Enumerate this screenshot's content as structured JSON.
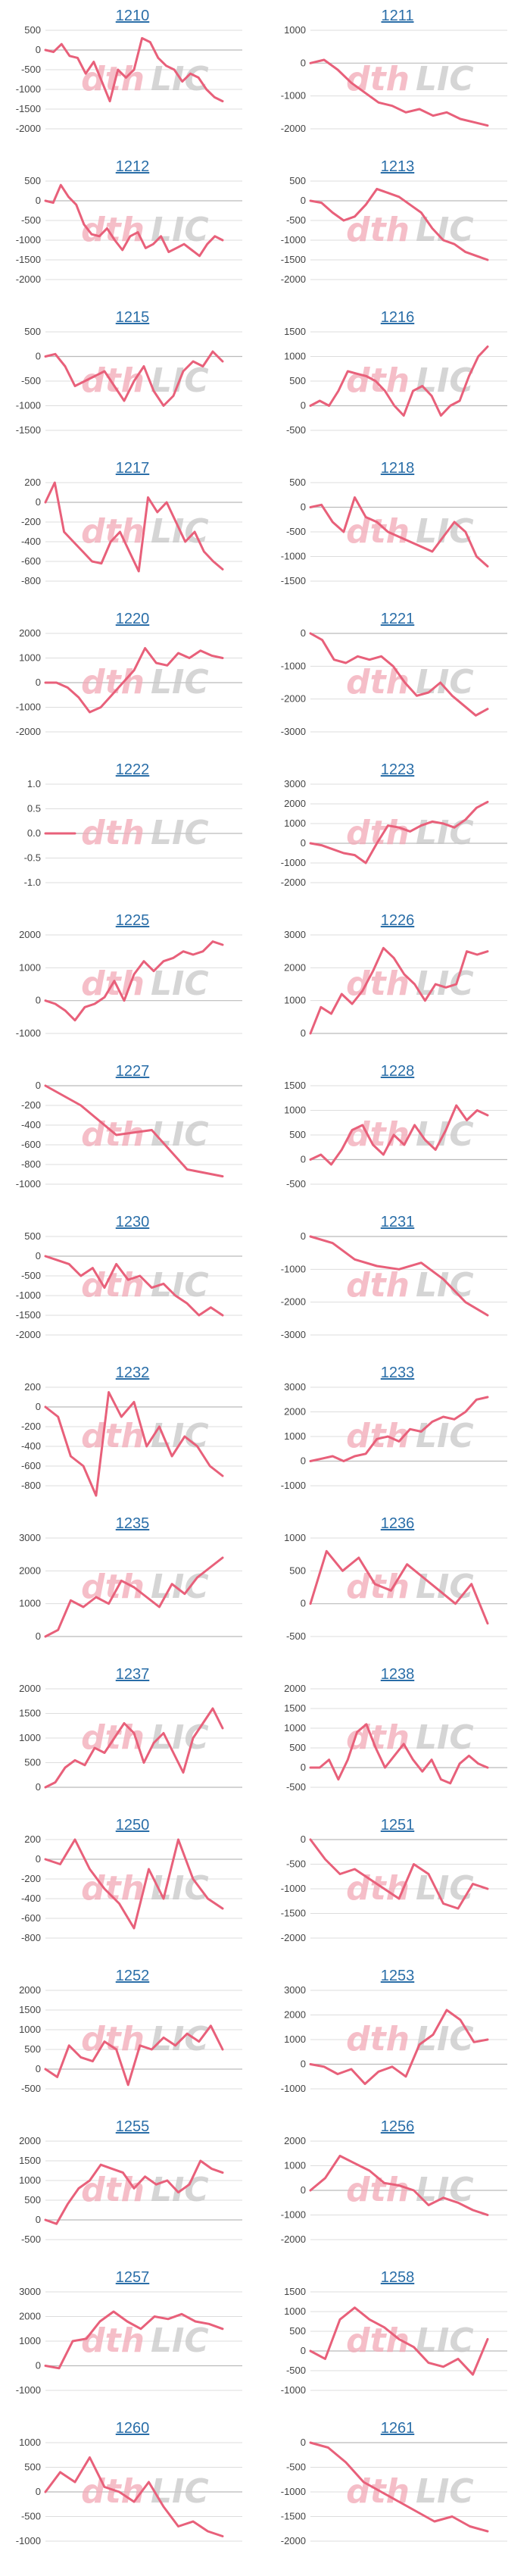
{
  "colors": {
    "line": "#e8607a",
    "grid": "#dddddd",
    "axis": "#bbbbbb",
    "title": "#2a6ea8",
    "watermark_left": "#f2a9b6",
    "watermark_right": "#c8c8c8"
  },
  "watermark": {
    "left_text": "dth",
    "right_text": "LIC",
    "description": "dth logo watermark"
  },
  "chart_data": [
    {
      "type": "line",
      "title": "1210",
      "yticks": [
        500,
        0,
        -500,
        -1000,
        -1500,
        -2000
      ],
      "values": [
        0,
        -50,
        150,
        -150,
        -200,
        -600,
        -300,
        -800,
        -1300,
        -500,
        -700,
        -500,
        300,
        200,
        -200,
        -400,
        -500,
        -800,
        -600,
        -700,
        -1000,
        -1200,
        -1300
      ]
    },
    {
      "type": "line",
      "title": "1211",
      "yticks": [
        1000,
        0,
        -1000,
        -2000
      ],
      "values": [
        0,
        100,
        -200,
        -600,
        -900,
        -1200,
        -1300,
        -1500,
        -1400,
        -1600,
        -1500,
        -1700,
        -1800,
        -1900
      ]
    },
    {
      "type": "line",
      "title": "1212",
      "yticks": [
        500,
        0,
        -500,
        -1000,
        -1500,
        -2000
      ],
      "values": [
        0,
        -50,
        400,
        100,
        -100,
        -600,
        -850,
        -900,
        -700,
        -1000,
        -1250,
        -900,
        -800,
        -1200,
        -1100,
        -900,
        -1300,
        -1200,
        -1100,
        -1250,
        -1400,
        -1100,
        -900,
        -1000
      ]
    },
    {
      "type": "line",
      "title": "1213",
      "yticks": [
        500,
        0,
        -500,
        -1000,
        -1500,
        -2000
      ],
      "values": [
        0,
        -50,
        -300,
        -500,
        -400,
        -100,
        300,
        200,
        100,
        -100,
        -300,
        -700,
        -1000,
        -1100,
        -1300,
        -1400,
        -1500
      ]
    },
    {
      "type": "line",
      "title": "1215",
      "yticks": [
        500,
        0,
        -500,
        -1000,
        -1500
      ],
      "values": [
        0,
        50,
        -200,
        -600,
        -500,
        -400,
        -300,
        -600,
        -900,
        -500,
        -200,
        -700,
        -1000,
        -800,
        -300,
        -100,
        -200,
        100,
        -100
      ]
    },
    {
      "type": "line",
      "title": "1216",
      "yticks": [
        1500,
        1000,
        500,
        0,
        -500
      ],
      "values": [
        0,
        100,
        0,
        300,
        700,
        650,
        600,
        500,
        300,
        0,
        -200,
        300,
        400,
        200,
        -200,
        0,
        100,
        600,
        1000,
        1200
      ]
    },
    {
      "type": "line",
      "title": "1217",
      "yticks": [
        200,
        0,
        -200,
        -400,
        -600,
        -800
      ],
      "values": [
        0,
        200,
        -300,
        -400,
        -500,
        -600,
        -620,
        -400,
        -300,
        -500,
        -700,
        50,
        -100,
        0,
        -200,
        -400,
        -300,
        -500,
        -600,
        -680
      ]
    },
    {
      "type": "line",
      "title": "1218",
      "yticks": [
        500,
        0,
        -500,
        -1000,
        -1500
      ],
      "values": [
        0,
        50,
        -300,
        -500,
        200,
        -200,
        -300,
        -500,
        -600,
        -700,
        -800,
        -900,
        -600,
        -300,
        -500,
        -1000,
        -1200
      ]
    },
    {
      "type": "line",
      "title": "1220",
      "yticks": [
        2000,
        1000,
        0,
        -1000,
        -2000
      ],
      "values": [
        0,
        0,
        -200,
        -600,
        -1200,
        -1000,
        -500,
        0,
        500,
        1400,
        800,
        700,
        1200,
        1000,
        1300,
        1100,
        1000
      ]
    },
    {
      "type": "line",
      "title": "1221",
      "yticks": [
        0,
        -1000,
        -2000,
        -3000
      ],
      "values": [
        0,
        -200,
        -800,
        -900,
        -700,
        -800,
        -700,
        -1000,
        -1500,
        -1900,
        -1800,
        -1500,
        -1900,
        -2200,
        -2500,
        -2300
      ]
    },
    {
      "type": "line",
      "title": "1222",
      "yticks": [
        1.0,
        0.5,
        0,
        -0.5,
        -1.0
      ],
      "values": [
        0,
        0,
        0,
        0
      ]
    },
    {
      "type": "line",
      "title": "1223",
      "yticks": [
        3000,
        2000,
        1000,
        0,
        -1000,
        -2000
      ],
      "values": [
        0,
        -100,
        -300,
        -500,
        -600,
        -1000,
        0,
        900,
        800,
        600,
        900,
        1100,
        1000,
        800,
        1200,
        1800,
        2100
      ]
    },
    {
      "type": "line",
      "title": "1225",
      "yticks": [
        2000,
        1000,
        0,
        -1000
      ],
      "values": [
        0,
        -100,
        -300,
        -600,
        -200,
        -100,
        100,
        600,
        0,
        800,
        1200,
        900,
        1200,
        1300,
        1500,
        1400,
        1500,
        1800,
        1700
      ]
    },
    {
      "type": "line",
      "title": "1226",
      "yticks": [
        3000,
        2000,
        1000,
        0
      ],
      "values": [
        0,
        800,
        600,
        1200,
        900,
        1300,
        1900,
        2600,
        2300,
        1800,
        1500,
        1000,
        1500,
        1400,
        1500,
        2500,
        2400,
        2500
      ]
    },
    {
      "type": "line",
      "title": "1227",
      "yticks": [
        0,
        -200,
        -400,
        -600,
        -800,
        -1000
      ],
      "values": [
        0,
        -200,
        -500,
        -450,
        -850,
        -920
      ]
    },
    {
      "type": "line",
      "title": "1228",
      "yticks": [
        1500,
        1000,
        500,
        0,
        -500
      ],
      "values": [
        0,
        100,
        -100,
        200,
        600,
        700,
        300,
        100,
        500,
        300,
        700,
        400,
        200,
        600,
        1100,
        800,
        1000,
        900
      ]
    },
    {
      "type": "line",
      "title": "1230",
      "yticks": [
        500,
        0,
        -500,
        -1000,
        -1500,
        -2000
      ],
      "values": [
        0,
        -100,
        -200,
        -500,
        -300,
        -800,
        -200,
        -600,
        -500,
        -800,
        -700,
        -1000,
        -1200,
        -1500,
        -1300,
        -1500
      ]
    },
    {
      "type": "line",
      "title": "1231",
      "yticks": [
        0,
        -1000,
        -2000,
        -3000
      ],
      "values": [
        0,
        -200,
        -700,
        -900,
        -1000,
        -800,
        -1300,
        -2000,
        -2400
      ]
    },
    {
      "type": "line",
      "title": "1232",
      "yticks": [
        200,
        0,
        -200,
        -400,
        -600,
        -800
      ],
      "values": [
        0,
        -100,
        -500,
        -600,
        -900,
        150,
        -100,
        50,
        -400,
        -200,
        -500,
        -300,
        -400,
        -600,
        -700
      ]
    },
    {
      "type": "line",
      "title": "1233",
      "yticks": [
        3000,
        2000,
        1000,
        0,
        -1000
      ],
      "values": [
        0,
        100,
        200,
        0,
        200,
        300,
        900,
        1000,
        800,
        1300,
        1200,
        1600,
        1800,
        1700,
        2000,
        2500,
        2600
      ]
    },
    {
      "type": "line",
      "title": "1235",
      "yticks": [
        3000,
        2000,
        1000,
        0
      ],
      "values": [
        0,
        200,
        1100,
        900,
        1200,
        1000,
        1700,
        1500,
        1200,
        900,
        1600,
        1300,
        1800,
        2100,
        2400
      ]
    },
    {
      "type": "line",
      "title": "1236",
      "yticks": [
        1000,
        500,
        0,
        -500
      ],
      "values": [
        0,
        800,
        500,
        700,
        300,
        200,
        600,
        400,
        200,
        0,
        300,
        -300
      ]
    },
    {
      "type": "line",
      "title": "1237",
      "yticks": [
        2000,
        1500,
        1000,
        500,
        0
      ],
      "values": [
        0,
        100,
        400,
        550,
        450,
        800,
        700,
        1000,
        1300,
        1100,
        500,
        900,
        1100,
        700,
        300,
        1000,
        1300,
        1600,
        1200
      ]
    },
    {
      "type": "line",
      "title": "1238",
      "yticks": [
        2000,
        1500,
        1000,
        500,
        0,
        -500
      ],
      "values": [
        0,
        0,
        200,
        -300,
        200,
        900,
        1100,
        500,
        0,
        300,
        600,
        200,
        -100,
        200,
        -300,
        -400,
        100,
        300,
        100,
        0
      ]
    },
    {
      "type": "line",
      "title": "1250",
      "yticks": [
        200,
        0,
        -200,
        -400,
        -600,
        -800
      ],
      "values": [
        0,
        -50,
        200,
        -100,
        -300,
        -450,
        -700,
        -100,
        -400,
        200,
        -200,
        -400,
        -500
      ]
    },
    {
      "type": "line",
      "title": "1251",
      "yticks": [
        0,
        -500,
        -1000,
        -1500,
        -2000
      ],
      "values": [
        0,
        -400,
        -700,
        -600,
        -800,
        -1000,
        -1200,
        -500,
        -700,
        -1300,
        -1400,
        -900,
        -1000
      ]
    },
    {
      "type": "line",
      "title": "1252",
      "yticks": [
        2000,
        1500,
        1000,
        500,
        0,
        -500
      ],
      "values": [
        0,
        -200,
        600,
        300,
        200,
        700,
        500,
        -400,
        600,
        500,
        800,
        600,
        900,
        700,
        1100,
        500
      ]
    },
    {
      "type": "line",
      "title": "1253",
      "yticks": [
        3000,
        2000,
        1000,
        0,
        -1000
      ],
      "values": [
        0,
        -100,
        -400,
        -200,
        -800,
        -300,
        -100,
        -500,
        800,
        1200,
        2200,
        1800,
        900,
        1000
      ]
    },
    {
      "type": "line",
      "title": "1255",
      "yticks": [
        2000,
        1500,
        1000,
        500,
        0,
        -500
      ],
      "values": [
        0,
        -100,
        400,
        800,
        1000,
        1400,
        1300,
        1200,
        800,
        1100,
        900,
        1000,
        700,
        900,
        1500,
        1300,
        1200
      ]
    },
    {
      "type": "line",
      "title": "1256",
      "yticks": [
        2000,
        1000,
        0,
        -1000,
        -2000
      ],
      "values": [
        0,
        500,
        1400,
        1100,
        800,
        300,
        200,
        0,
        -600,
        -300,
        -500,
        -800,
        -1000
      ]
    },
    {
      "type": "line",
      "title": "1257",
      "yticks": [
        3000,
        2000,
        1000,
        0,
        -1000
      ],
      "values": [
        0,
        -100,
        1000,
        1100,
        1800,
        2200,
        1800,
        1500,
        2000,
        1900,
        2100,
        1800,
        1700,
        1500
      ]
    },
    {
      "type": "line",
      "title": "1258",
      "yticks": [
        1500,
        1000,
        500,
        0,
        -500,
        -1000
      ],
      "values": [
        0,
        -200,
        800,
        1100,
        800,
        600,
        300,
        100,
        -300,
        -400,
        -200,
        -600,
        300
      ]
    },
    {
      "type": "line",
      "title": "1260",
      "yticks": [
        1000,
        500,
        0,
        -500,
        -1000
      ],
      "values": [
        0,
        400,
        200,
        700,
        100,
        0,
        -200,
        200,
        -300,
        -700,
        -600,
        -800,
        -900
      ]
    },
    {
      "type": "line",
      "title": "1261",
      "yticks": [
        0,
        -500,
        -1000,
        -1500,
        -2000
      ],
      "values": [
        0,
        -100,
        -400,
        -800,
        -1000,
        -1200,
        -1400,
        -1600,
        -1500,
        -1700,
        -1800
      ]
    }
  ]
}
